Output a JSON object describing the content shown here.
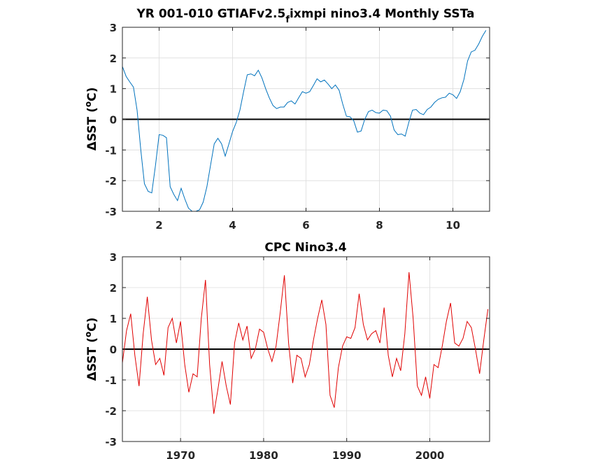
{
  "chart_data": [
    {
      "type": "line",
      "title_main": "YR 001-010 GTIAFv2.5",
      "title_sub": "f",
      "title_rest": "ixmpi nino3.4 Monthly SSTa",
      "ylabel_delta": "Δ",
      "ylabel_text": "SST (",
      "ylabel_deg": "o",
      "ylabel_unit": "C)",
      "xlim": [
        1,
        11
      ],
      "ylim": [
        -3,
        3
      ],
      "xticks": [
        2,
        4,
        6,
        8,
        10
      ],
      "xtick_labels": [
        "2",
        "4",
        "6",
        "8",
        "10"
      ],
      "yticks": [
        -3,
        -2,
        -1,
        0,
        1,
        2,
        3
      ],
      "ytick_labels": [
        "-3",
        "-2",
        "-1",
        "0",
        "1",
        "2",
        "3"
      ],
      "grid": true,
      "line_color": "#0072bd",
      "zero_line_color": "#000000",
      "series": [
        {
          "x": [
            1.0,
            1.1,
            1.2,
            1.3,
            1.4,
            1.5,
            1.6,
            1.7,
            1.8,
            1.9,
            2.0,
            2.1,
            2.2,
            2.3,
            2.4,
            2.5,
            2.6,
            2.7,
            2.8,
            2.9,
            3.0,
            3.1,
            3.2,
            3.3,
            3.4,
            3.5,
            3.6,
            3.7,
            3.8,
            3.9,
            4.0,
            4.1,
            4.2,
            4.3,
            4.4,
            4.5,
            4.6,
            4.7,
            4.8,
            4.9,
            5.0,
            5.1,
            5.2,
            5.3,
            5.4,
            5.5,
            5.6,
            5.7,
            5.8,
            5.9,
            6.0,
            6.1,
            6.2,
            6.3,
            6.4,
            6.5,
            6.6,
            6.7,
            6.8,
            6.9,
            7.0,
            7.1,
            7.2,
            7.3,
            7.4,
            7.5,
            7.6,
            7.7,
            7.8,
            7.9,
            8.0,
            8.1,
            8.2,
            8.3,
            8.4,
            8.5,
            8.6,
            8.7,
            8.8,
            8.9,
            9.0,
            9.1,
            9.2,
            9.3,
            9.4,
            9.5,
            9.6,
            9.7,
            9.8,
            9.9,
            10.0,
            10.1,
            10.2,
            10.3,
            10.4,
            10.5,
            10.6,
            10.7,
            10.8,
            10.9
          ],
          "y": [
            1.72,
            1.4,
            1.22,
            1.05,
            0.3,
            -1.0,
            -2.1,
            -2.35,
            -2.4,
            -1.5,
            -0.5,
            -0.52,
            -0.6,
            -2.2,
            -2.45,
            -2.65,
            -2.25,
            -2.6,
            -2.9,
            -3.0,
            -3.0,
            -2.95,
            -2.7,
            -2.2,
            -1.5,
            -0.8,
            -0.62,
            -0.8,
            -1.2,
            -0.8,
            -0.4,
            -0.1,
            0.3,
            0.9,
            1.45,
            1.48,
            1.42,
            1.6,
            1.35,
            1.0,
            0.7,
            0.45,
            0.35,
            0.4,
            0.4,
            0.55,
            0.6,
            0.5,
            0.7,
            0.9,
            0.85,
            0.9,
            1.1,
            1.32,
            1.22,
            1.28,
            1.15,
            1.0,
            1.12,
            0.95,
            0.5,
            0.1,
            0.08,
            -0.05,
            -0.42,
            -0.38,
            0.0,
            0.25,
            0.3,
            0.22,
            0.2,
            0.3,
            0.28,
            0.1,
            -0.35,
            -0.5,
            -0.48,
            -0.55,
            -0.1,
            0.3,
            0.32,
            0.2,
            0.15,
            0.32,
            0.4,
            0.55,
            0.65,
            0.7,
            0.72,
            0.85,
            0.8,
            0.68,
            0.9,
            1.3,
            1.9,
            2.2,
            2.25,
            2.45,
            2.7,
            2.9
          ]
        }
      ]
    },
    {
      "type": "line",
      "title": "CPC Nino3.4",
      "ylabel_delta": "Δ",
      "ylabel_text": "SST (",
      "ylabel_deg": "o",
      "ylabel_unit": "C)",
      "xlim": [
        1963,
        2007.2
      ],
      "ylim": [
        -3,
        3
      ],
      "xticks": [
        1970,
        1980,
        1990,
        2000
      ],
      "xtick_labels": [
        "1970",
        "1980",
        "1990",
        "2000"
      ],
      "yticks": [
        -3,
        -2,
        -1,
        0,
        1,
        2,
        3
      ],
      "ytick_labels": [
        "-3",
        "-2",
        "-1",
        "0",
        "1",
        "2",
        "3"
      ],
      "grid": true,
      "line_color": "#e00000",
      "zero_line_color": "#000000",
      "series": [
        {
          "x": [
            1963.0,
            1963.5,
            1964.0,
            1964.5,
            1965.0,
            1965.5,
            1966.0,
            1966.5,
            1967.0,
            1967.5,
            1968.0,
            1968.5,
            1969.0,
            1969.5,
            1970.0,
            1970.5,
            1971.0,
            1971.5,
            1972.0,
            1972.5,
            1973.0,
            1973.5,
            1974.0,
            1974.5,
            1975.0,
            1975.5,
            1976.0,
            1976.5,
            1977.0,
            1977.5,
            1978.0,
            1978.5,
            1979.0,
            1979.5,
            1980.0,
            1980.5,
            1981.0,
            1981.5,
            1982.0,
            1982.5,
            1983.0,
            1983.5,
            1984.0,
            1984.5,
            1985.0,
            1985.5,
            1986.0,
            1986.5,
            1987.0,
            1987.5,
            1988.0,
            1988.5,
            1989.0,
            1989.5,
            1990.0,
            1990.5,
            1991.0,
            1991.5,
            1992.0,
            1992.5,
            1993.0,
            1993.5,
            1994.0,
            1994.5,
            1995.0,
            1995.5,
            1996.0,
            1996.5,
            1997.0,
            1997.5,
            1998.0,
            1998.5,
            1999.0,
            1999.5,
            2000.0,
            2000.5,
            2001.0,
            2001.5,
            2002.0,
            2002.5,
            2003.0,
            2003.5,
            2004.0,
            2004.5,
            2005.0,
            2005.5,
            2006.0,
            2006.5,
            2007.0
          ],
          "y": [
            -0.45,
            0.6,
            1.15,
            -0.2,
            -1.2,
            0.5,
            1.7,
            0.3,
            -0.5,
            -0.3,
            -0.85,
            0.7,
            1.0,
            0.2,
            0.9,
            -0.5,
            -1.4,
            -0.8,
            -0.9,
            1.0,
            2.25,
            -0.5,
            -2.1,
            -1.3,
            -0.4,
            -1.2,
            -1.8,
            0.2,
            0.85,
            0.3,
            0.75,
            -0.3,
            0.0,
            0.65,
            0.55,
            0.0,
            -0.4,
            0.1,
            1.2,
            2.4,
            0.2,
            -1.1,
            -0.2,
            -0.3,
            -0.9,
            -0.5,
            0.3,
            1.0,
            1.6,
            0.8,
            -1.5,
            -1.9,
            -0.6,
            0.1,
            0.4,
            0.35,
            0.7,
            1.8,
            0.8,
            0.3,
            0.5,
            0.6,
            0.2,
            1.35,
            -0.2,
            -0.9,
            -0.3,
            -0.7,
            0.5,
            2.5,
            1.0,
            -1.2,
            -1.5,
            -0.9,
            -1.6,
            -0.5,
            -0.6,
            0.1,
            0.9,
            1.5,
            0.2,
            0.1,
            0.35,
            0.9,
            0.7,
            0.0,
            -0.8,
            0.3,
            1.3
          ]
        }
      ]
    }
  ]
}
